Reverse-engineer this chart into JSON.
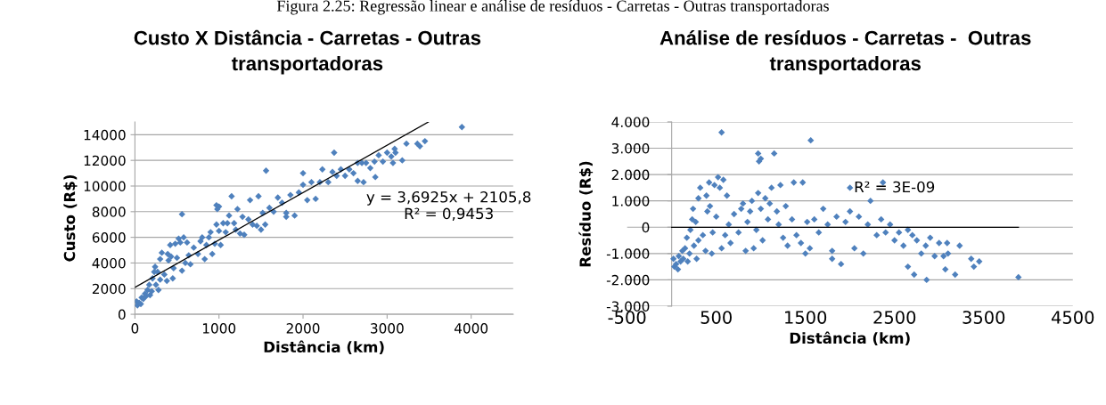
{
  "chart_data": [
    {
      "type": "scatter",
      "title": "Custo X Distância - Carretas - Outras transportadoras",
      "xlabel": "Distância (km)",
      "ylabel": "Custo (R$)",
      "annotations": [
        "Figura 2.25: Regressão linear e análise de resíduos - Carretas - Outras transportadoras",
        "y = 3,6925x + 2105,8\nR² = 0,9453"
      ],
      "xlim": [
        0,
        4500
      ],
      "xticks": [
        0,
        1000,
        2000,
        3000,
        4000
      ],
      "ylim": [
        0,
        15000
      ],
      "yticks": [
        0,
        2000,
        4000,
        6000,
        8000,
        10000,
        12000,
        14000
      ],
      "grid": "y",
      "marker": "diamond",
      "series": [
        {
          "color": "#4f81bd",
          "x": [
            20,
            30,
            50,
            70,
            80,
            100,
            120,
            130,
            150,
            170,
            180,
            200,
            210,
            230,
            240,
            250,
            270,
            280,
            300,
            300,
            320,
            350,
            380,
            390,
            400,
            420,
            430,
            450,
            460,
            480,
            500,
            520,
            540,
            560,
            560,
            580,
            600,
            620,
            640,
            660,
            700,
            750,
            780,
            800,
            830,
            850,
            880,
            900,
            920,
            950,
            970,
            970,
            980,
            1000,
            1000,
            1020,
            1050,
            1080,
            1100,
            1120,
            1150,
            1180,
            1200,
            1220,
            1250,
            1280,
            1300,
            1350,
            1370,
            1400,
            1450,
            1470,
            1500,
            1520,
            1550,
            1560,
            1600,
            1650,
            1700,
            1750,
            1800,
            1800,
            1850,
            1900,
            1950,
            2000,
            2000,
            2050,
            2100,
            2150,
            2200,
            2230,
            2300,
            2350,
            2370,
            2400,
            2450,
            2500,
            2550,
            2600,
            2650,
            2650,
            2700,
            2720,
            2750,
            2800,
            2850,
            2860,
            2900,
            2950,
            3000,
            3050,
            3070,
            3090,
            3100,
            3180,
            3230,
            3360,
            3390,
            3450,
            3890
          ],
          "values": [
            1000,
            700,
            900,
            800,
            1300,
            1200,
            1600,
            1400,
            1900,
            2300,
            1500,
            1800,
            2800,
            3300,
            3700,
            2300,
            3300,
            1900,
            2700,
            4300,
            4800,
            3100,
            2600,
            4700,
            4200,
            5400,
            4500,
            2800,
            3600,
            5500,
            4400,
            5900,
            5600,
            3400,
            7800,
            6000,
            4000,
            5600,
            4600,
            3900,
            5200,
            4700,
            5700,
            6000,
            4300,
            5400,
            6000,
            6400,
            4700,
            5500,
            7000,
            8500,
            8200,
            6500,
            8400,
            5400,
            7100,
            6400,
            7100,
            7700,
            9200,
            7100,
            6600,
            8200,
            6300,
            7600,
            6200,
            7400,
            8900,
            7000,
            6900,
            9200,
            6600,
            7900,
            7000,
            11200,
            8300,
            8000,
            9100,
            8700,
            7900,
            7600,
            9300,
            7700,
            9500,
            10100,
            11000,
            8900,
            10300,
            9000,
            10300,
            11300,
            10300,
            11100,
            12600,
            10800,
            11300,
            10800,
            11300,
            11000,
            11800,
            10400,
            11800,
            10300,
            11800,
            11400,
            11900,
            10700,
            12400,
            11900,
            12600,
            12300,
            11800,
            12900,
            12600,
            12000,
            13300,
            13300,
            13100,
            13500,
            14600
          ]
        },
        {
          "type": "line",
          "color": "#000000",
          "marker": "none",
          "x": [
            0,
            3492
          ],
          "values": [
            2100,
            15000
          ]
        }
      ]
    },
    {
      "type": "scatter",
      "title": "Análise de resíduos - Carretas -  Outras transportadoras",
      "xlabel": "Distância (km)",
      "ylabel": "Resíduo (R$)",
      "annotations": [
        "R² = 3E-09"
      ],
      "xlim": [
        -500,
        4500
      ],
      "xticks": [
        {
          "value": -500,
          "label": "-500"
        },
        500,
        1500,
        2500,
        3500,
        4500
      ],
      "ylim": [
        -3000,
        4000
      ],
      "yticks": [
        {
          "value": -3000,
          "label": "-3.000"
        },
        {
          "value": -2000,
          "label": "-2.000"
        },
        {
          "value": -1000,
          "label": "-1.000"
        },
        0,
        {
          "value": 1000,
          "label": "1.000"
        },
        {
          "value": 2000,
          "label": "2.000"
        },
        {
          "value": 3000,
          "label": "3.000"
        },
        {
          "value": 4000,
          "label": "4.000"
        }
      ],
      "grid": "y",
      "marker": "diamond",
      "series": [
        {
          "color": "#4f81bd",
          "x": [
            20,
            30,
            50,
            70,
            80,
            100,
            120,
            130,
            150,
            170,
            180,
            200,
            210,
            230,
            240,
            250,
            270,
            280,
            300,
            300,
            320,
            350,
            380,
            390,
            400,
            420,
            430,
            450,
            460,
            480,
            500,
            520,
            540,
            560,
            560,
            580,
            600,
            620,
            640,
            660,
            700,
            750,
            780,
            800,
            830,
            850,
            880,
            900,
            920,
            950,
            970,
            970,
            980,
            1000,
            1000,
            1020,
            1050,
            1080,
            1100,
            1120,
            1150,
            1180,
            1200,
            1220,
            1250,
            1280,
            1300,
            1350,
            1370,
            1400,
            1450,
            1470,
            1500,
            1520,
            1550,
            1560,
            1600,
            1650,
            1700,
            1750,
            1800,
            1800,
            1850,
            1900,
            1950,
            2000,
            2000,
            2050,
            2100,
            2150,
            2200,
            2230,
            2300,
            2350,
            2370,
            2400,
            2450,
            2500,
            2550,
            2600,
            2650,
            2650,
            2700,
            2720,
            2750,
            2800,
            2850,
            2860,
            2900,
            2950,
            3000,
            3050,
            3070,
            3090,
            3100,
            3180,
            3230,
            3360,
            3390,
            3450,
            3890
          ],
          "values": [
            -1200,
            -1500,
            -1400,
            -1600,
            -1100,
            -1300,
            -900,
            -1200,
            -800,
            -400,
            -1300,
            -1000,
            -100,
            300,
            700,
            -700,
            200,
            -1200,
            -500,
            1100,
            1500,
            -300,
            -900,
            1200,
            600,
            1700,
            800,
            -1000,
            -200,
            1600,
            400,
            1900,
            1500,
            -800,
            3600,
            1800,
            -300,
            1200,
            100,
            -600,
            500,
            -200,
            700,
            900,
            -900,
            200,
            600,
            1000,
            -800,
            -100,
            1300,
            2800,
            2500,
            700,
            2600,
            -500,
            1100,
            300,
            900,
            1500,
            2800,
            600,
            100,
            1600,
            -400,
            800,
            -700,
            300,
            1700,
            -300,
            -600,
            1700,
            -1000,
            200,
            -800,
            3300,
            300,
            -200,
            700,
            100,
            -900,
            -1200,
            400,
            -1400,
            200,
            600,
            1500,
            -800,
            400,
            -1000,
            100,
            1000,
            -300,
            300,
            1700,
            -200,
            100,
            -500,
            -200,
            -700,
            -100,
            -1500,
            -300,
            -1800,
            -500,
            -1000,
            -700,
            -2000,
            -400,
            -1100,
            -600,
            -1100,
            -1600,
            -600,
            -1000,
            -1800,
            -700,
            -1200,
            -1500,
            -1300,
            -1900
          ]
        },
        {
          "type": "line",
          "color": "#000000",
          "marker": "none",
          "x": [
            0,
            3890
          ],
          "values": [
            0,
            0
          ]
        }
      ]
    }
  ]
}
